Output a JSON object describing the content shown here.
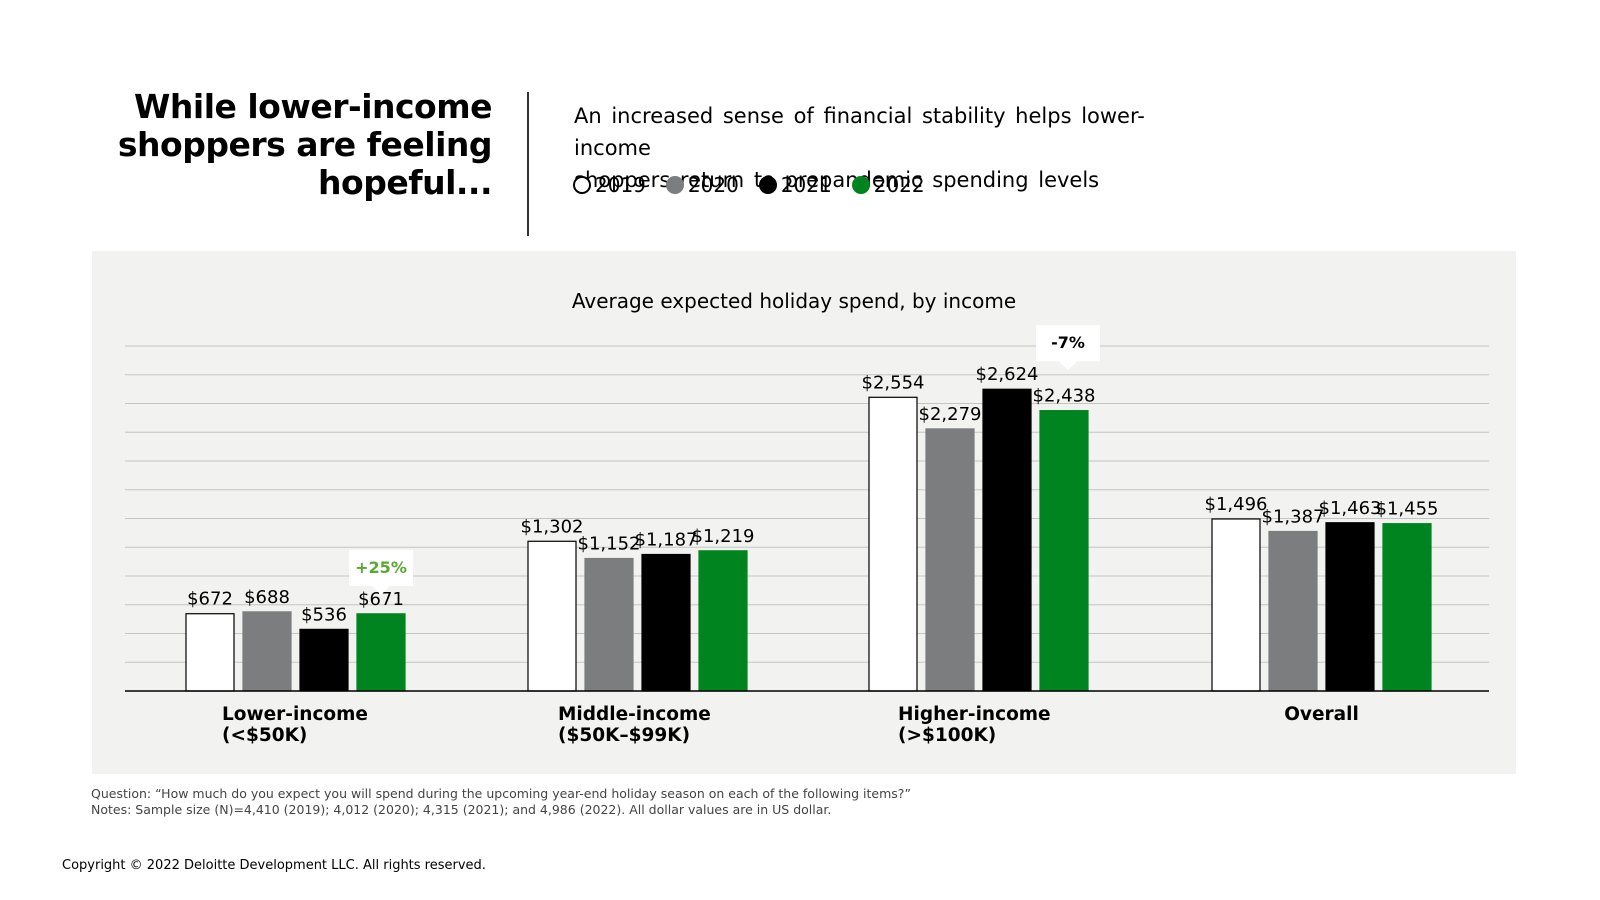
{
  "headline": {
    "line1": "While lower-income",
    "line2": "shoppers are feeling",
    "line3": "hopeful..."
  },
  "subtitle": {
    "line1": "An increased sense of financial stability helps lower-income",
    "line2": "shoppers return to prepandemic spending levels"
  },
  "legend": [
    {
      "label": "2019",
      "color": "#ffffff",
      "stroke": "#000000"
    },
    {
      "label": "2020",
      "color": "#7b7d7e",
      "stroke": "#7b7d7e"
    },
    {
      "label": "2021",
      "color": "#000000",
      "stroke": "#000000"
    },
    {
      "label": "2022",
      "color": "#00841f",
      "stroke": "#00841f"
    }
  ],
  "chart_data": {
    "type": "bar",
    "title": "Average expected holiday spend, by income",
    "xlabel": "",
    "ylabel": "",
    "ylim": [
      0,
      3000
    ],
    "grid": true,
    "categories": [
      {
        "line1": "Lower-income",
        "line2": "(<$50K)"
      },
      {
        "line1": "Middle-income",
        "line2": "($50K–$99K)"
      },
      {
        "line1": "Higher-income",
        "line2": "(>$100K)"
      },
      {
        "line1": "Overall",
        "line2": ""
      }
    ],
    "series": [
      {
        "name": "2019",
        "values": [
          672,
          1302,
          2554,
          1496
        ],
        "labels": [
          "$672",
          "$1,302",
          "$2,554",
          "$1,496"
        ]
      },
      {
        "name": "2020",
        "values": [
          688,
          1152,
          2279,
          1387
        ],
        "labels": [
          "$688",
          "$1,152",
          "$2,279",
          "$1,387"
        ]
      },
      {
        "name": "2021",
        "values": [
          536,
          1187,
          2624,
          1463
        ],
        "labels": [
          "$536",
          "$1,187",
          "$2,624",
          "$1,463"
        ]
      },
      {
        "name": "2022",
        "values": [
          671,
          1219,
          2438,
          1455
        ],
        "labels": [
          "$671",
          "$1,219",
          "$2,438",
          "$1,455"
        ]
      }
    ],
    "annotations": [
      {
        "category": 0,
        "text": "+25%",
        "color": "#5aa832"
      },
      {
        "category": 2,
        "text": "-7%",
        "color": "#000000"
      }
    ]
  },
  "notes": {
    "question": "Question: “How much do you expect you will spend during the upcoming year-end holiday season on each of the following items?”",
    "sample": "Notes: Sample size (N)=4,410 (2019); 4,012 (2020); 4,315 (2021); and 4,986 (2022). All dollar values are in US dollar."
  },
  "copyright": "Copyright © 2022 Deloitte Development LLC. All rights reserved."
}
